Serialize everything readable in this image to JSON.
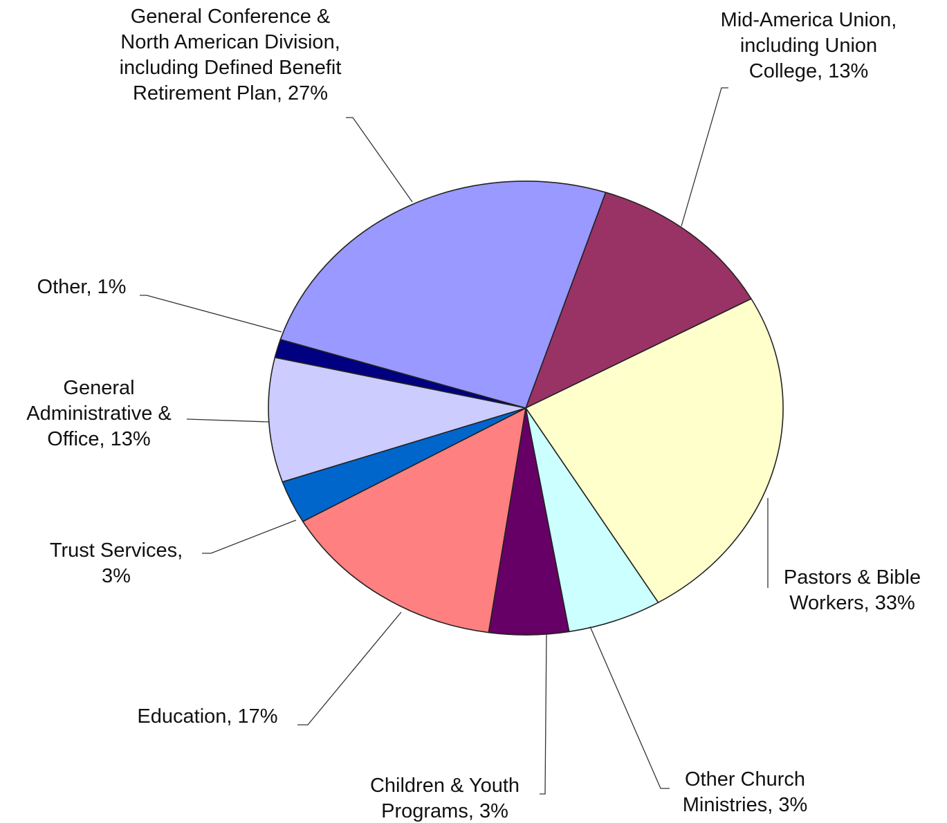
{
  "chart_data": {
    "type": "pie",
    "title": "",
    "series": [
      {
        "values": [
          13,
          33,
          3,
          3,
          17,
          3,
          13,
          1,
          27
        ]
      }
    ],
    "slices": [
      {
        "label": "Mid-America Union, including Union College",
        "value": 13,
        "color": "#993366",
        "text_lines": [
          "Mid-America Union,",
          "including Union",
          "College, 13%"
        ]
      },
      {
        "label": "Pastors & Bible Workers",
        "value": 33,
        "color": "#FFFFCC",
        "text_lines": [
          "Pastors & Bible",
          "Workers, 33%"
        ]
      },
      {
        "label": "Other Church Ministries",
        "value": 3,
        "color": "#CCFFFF",
        "text_lines": [
          "Other Church",
          "Ministries, 3%"
        ]
      },
      {
        "label": "Children & Youth Programs",
        "value": 3,
        "color": "#660066",
        "text_lines": [
          "Children & Youth",
          "Programs, 3%"
        ]
      },
      {
        "label": "Education",
        "value": 17,
        "color": "#FF8080",
        "text_lines": [
          "Education, 17%"
        ]
      },
      {
        "label": "Trust Services",
        "value": 3,
        "color": "#0066CC",
        "text_lines": [
          "Trust Services,",
          "3%"
        ]
      },
      {
        "label": "General Administrative & Office",
        "value": 13,
        "color": "#CCCCFF",
        "text_lines": [
          "General",
          "Administrative &",
          "Office, 13%"
        ]
      },
      {
        "label": "Other",
        "value": 1,
        "color": "#000080",
        "text_lines": [
          "Other, 1%"
        ]
      },
      {
        "label": "General Conference & North American Division, including Defined Benefit Retirement Plan",
        "value": 27,
        "color": "#9999FF",
        "text_lines": [
          "General Conference &",
          "North American Division,",
          "including Defined Benefit",
          "Retirement Plan, 27%"
        ]
      }
    ],
    "legend": "none",
    "label_style": "outside labels with leader lines"
  }
}
